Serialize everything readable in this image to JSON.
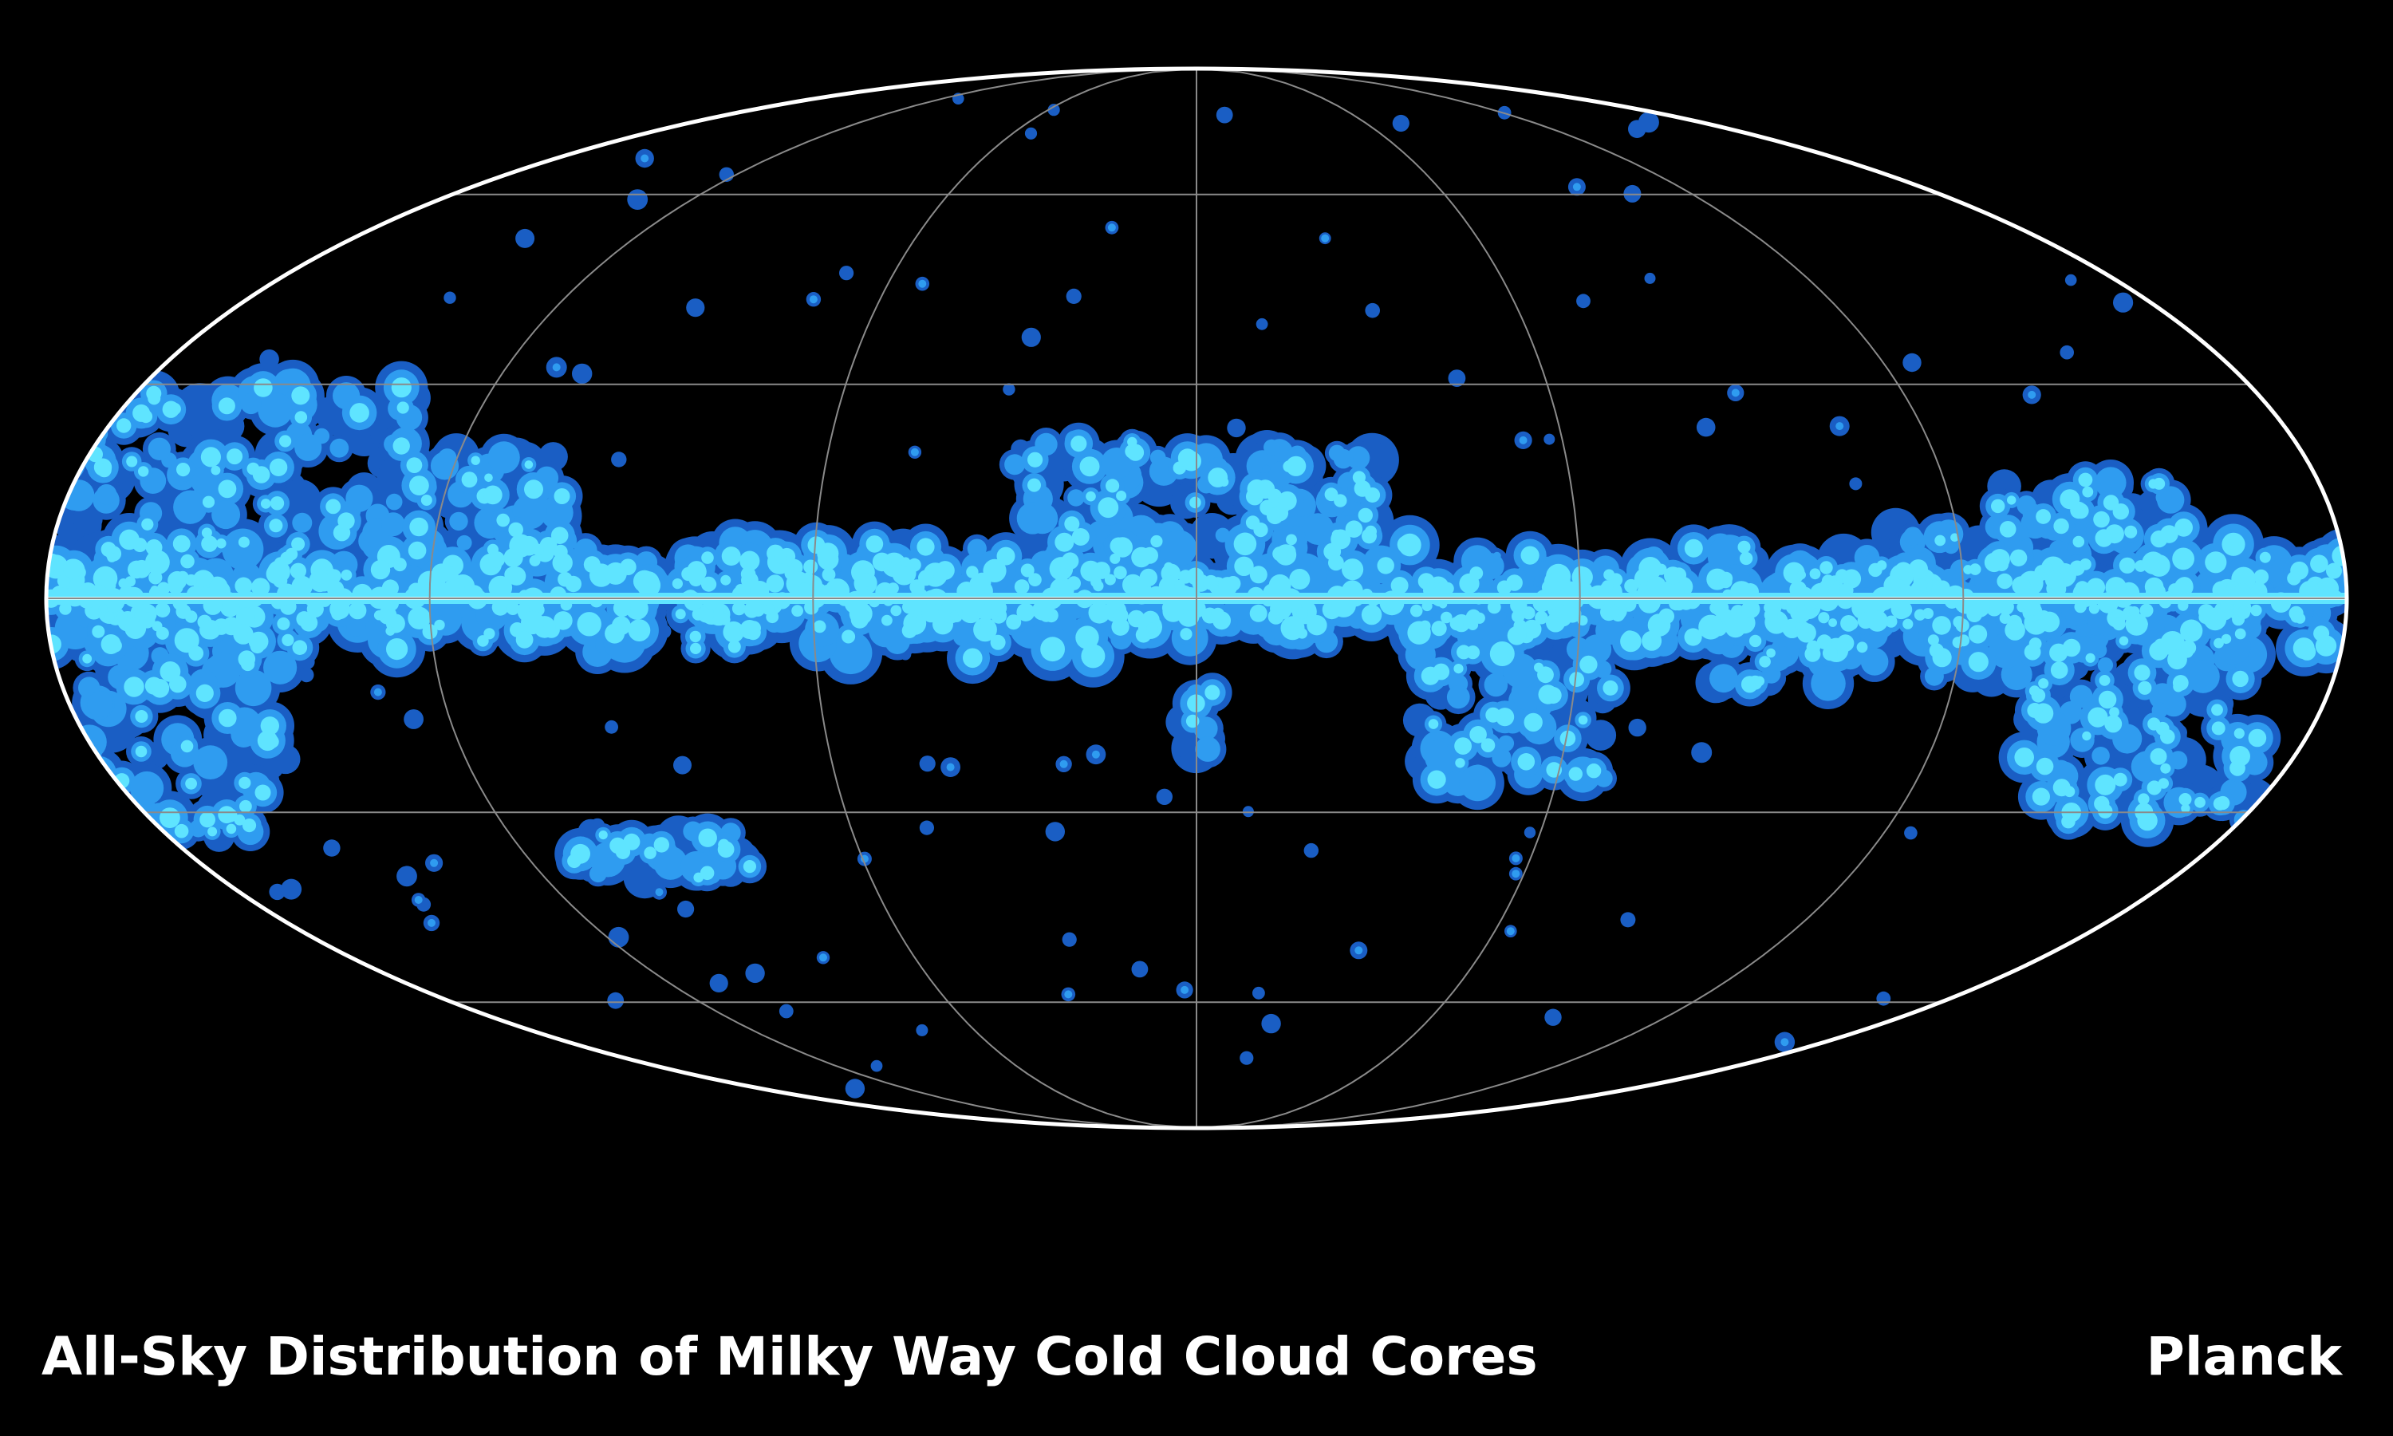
{
  "caption": {
    "title": "All-Sky Distribution of Milky Way Cold Cloud Cores",
    "credit": "Planck"
  },
  "map": {
    "projection": "Mollweide",
    "coordinate_system": "galactic",
    "background_color": "#000000",
    "outline_color": "#ffffff",
    "graticule_color": "#8a8a8a",
    "graticule_meridians_deg": [
      -180,
      -120,
      -60,
      0,
      60,
      120,
      180
    ],
    "graticule_parallels_deg": [
      -60,
      -30,
      0,
      30,
      60
    ],
    "density_levels": [
      {
        "level": "low",
        "color": "#1a5ec4"
      },
      {
        "level": "medium",
        "color": "#2f9cf0"
      },
      {
        "level": "high",
        "color": "#5fe4ff"
      },
      {
        "level": "peak",
        "color": "#c8fbff"
      }
    ]
  }
}
